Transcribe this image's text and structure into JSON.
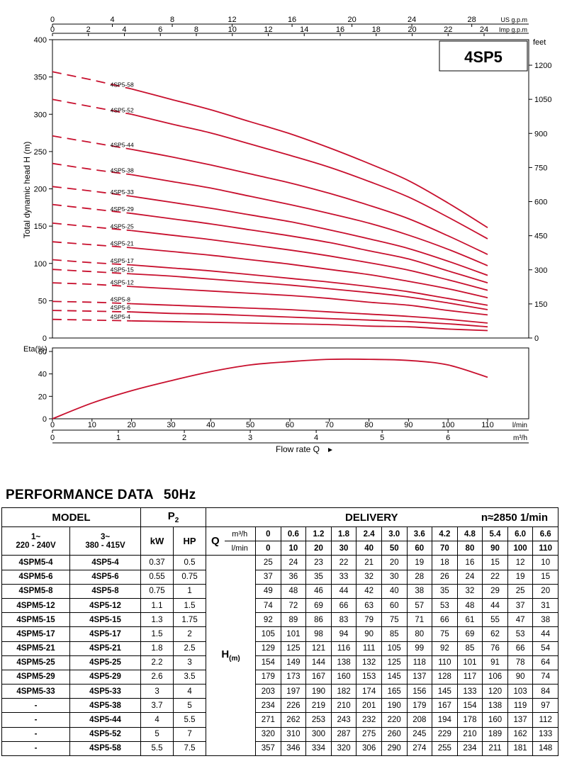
{
  "chart_data": [
    {
      "type": "line",
      "title": "4SP5",
      "ylabel": "Total dynamic head H (m)",
      "ylabel_right": "feet",
      "xlabel": "Flow rate Q",
      "x_unit": "l/min",
      "ylim": [
        0,
        400
      ],
      "xlim": [
        0,
        110
      ],
      "y_ticks": [
        0,
        50,
        100,
        150,
        200,
        250,
        300,
        350,
        400
      ],
      "y_right_ticks": [
        0,
        150,
        300,
        450,
        600,
        750,
        900,
        1050,
        1200
      ],
      "top_axes": [
        {
          "label": "US g.p.m",
          "ticks": [
            0,
            4,
            8,
            12,
            16,
            20,
            24,
            28
          ]
        },
        {
          "label": "Imp g.p.m",
          "ticks": [
            0,
            2,
            4,
            6,
            8,
            10,
            12,
            14,
            16,
            18,
            20,
            22,
            24
          ]
        }
      ],
      "x": [
        0,
        10,
        20,
        30,
        40,
        50,
        60,
        70,
        80,
        90,
        100,
        110
      ],
      "series": [
        {
          "name": "4SP5-4",
          "values": [
            25,
            24,
            23,
            22,
            21,
            20,
            19,
            18,
            16,
            15,
            12,
            10
          ]
        },
        {
          "name": "4SP5-6",
          "values": [
            37,
            36,
            35,
            33,
            32,
            30,
            28,
            26,
            24,
            22,
            19,
            15
          ]
        },
        {
          "name": "4SP5-8",
          "values": [
            49,
            48,
            46,
            44,
            42,
            40,
            38,
            35,
            32,
            29,
            25,
            20
          ]
        },
        {
          "name": "4SP5-12",
          "values": [
            74,
            72,
            69,
            66,
            63,
            60,
            57,
            53,
            48,
            44,
            37,
            31
          ]
        },
        {
          "name": "4SP5-15",
          "values": [
            92,
            89,
            86,
            83,
            79,
            75,
            71,
            66,
            61,
            55,
            47,
            38
          ]
        },
        {
          "name": "4SP5-17",
          "values": [
            105,
            101,
            98,
            94,
            90,
            85,
            80,
            75,
            69,
            62,
            53,
            44
          ]
        },
        {
          "name": "4SP5-21",
          "values": [
            129,
            125,
            121,
            116,
            111,
            105,
            99,
            92,
            85,
            76,
            66,
            54
          ]
        },
        {
          "name": "4SP5-25",
          "values": [
            154,
            149,
            144,
            138,
            132,
            125,
            118,
            110,
            101,
            91,
            78,
            64
          ]
        },
        {
          "name": "4SP5-29",
          "values": [
            179,
            173,
            167,
            160,
            153,
            145,
            137,
            128,
            117,
            106,
            90,
            74
          ]
        },
        {
          "name": "4SP5-33",
          "values": [
            203,
            197,
            190,
            182,
            174,
            165,
            156,
            145,
            133,
            120,
            103,
            84
          ]
        },
        {
          "name": "4SP5-38",
          "values": [
            234,
            226,
            219,
            210,
            201,
            190,
            179,
            167,
            154,
            138,
            119,
            97
          ]
        },
        {
          "name": "4SP5-44",
          "values": [
            271,
            262,
            253,
            243,
            232,
            220,
            208,
            194,
            178,
            160,
            137,
            112
          ]
        },
        {
          "name": "4SP5-52",
          "values": [
            320,
            310,
            300,
            287,
            275,
            260,
            245,
            229,
            210,
            189,
            162,
            133
          ]
        },
        {
          "name": "4SP5-58",
          "values": [
            357,
            346,
            334,
            320,
            306,
            290,
            274,
            255,
            234,
            211,
            181,
            148
          ]
        }
      ],
      "dashed_until_x": 20,
      "line_color": "#c8102e"
    },
    {
      "type": "line",
      "ylabel": "Eta(%)",
      "ylim": [
        0,
        60
      ],
      "y_ticks": [
        0,
        20,
        40,
        60
      ],
      "x_axes": [
        {
          "unit": "l/min",
          "ticks": [
            0,
            10,
            20,
            30,
            40,
            50,
            60,
            70,
            80,
            90,
            100,
            110
          ]
        },
        {
          "unit": "m³/h",
          "ticks": [
            0,
            1,
            2,
            3,
            4,
            5,
            6
          ]
        }
      ],
      "x": [
        0,
        10,
        20,
        30,
        40,
        50,
        60,
        70,
        80,
        90,
        100,
        110
      ],
      "series": [
        {
          "values": [
            0,
            14,
            25,
            34,
            42,
            48,
            51,
            53,
            53,
            52,
            48,
            37
          ]
        }
      ],
      "line_color": "#c8102e"
    }
  ],
  "performance": {
    "title": "PERFORMANCE  DATA",
    "hz": "50Hz",
    "header": {
      "model": "MODEL",
      "p2": "P",
      "p2_sub": "2",
      "delivery": "DELIVERY",
      "speed": "n≈2850 1/min",
      "single_phase": "1~",
      "single_voltage": "220 - 240V",
      "three_phase": "3~",
      "three_voltage": "380 - 415V",
      "kw": "kW",
      "hp": "HP",
      "q": "Q",
      "unit_m3h": "m³/h",
      "unit_lmin": "l/min",
      "h_label": "H",
      "h_unit": "(m)"
    },
    "q_m3h": [
      "0",
      "0.6",
      "1.2",
      "1.8",
      "2.4",
      "3.0",
      "3.6",
      "4.2",
      "4.8",
      "5.4",
      "6.0",
      "6.6"
    ],
    "q_lmin": [
      "0",
      "10",
      "20",
      "30",
      "40",
      "50",
      "60",
      "70",
      "80",
      "90",
      "100",
      "110"
    ],
    "rows": [
      {
        "m1": "4SPM5-4",
        "m3": "4SP5-4",
        "kw": "0.37",
        "hp": "0.5",
        "h": [
          "25",
          "24",
          "23",
          "22",
          "21",
          "20",
          "19",
          "18",
          "16",
          "15",
          "12",
          "10"
        ]
      },
      {
        "m1": "4SPM5-6",
        "m3": "4SP5-6",
        "kw": "0.55",
        "hp": "0.75",
        "h": [
          "37",
          "36",
          "35",
          "33",
          "32",
          "30",
          "28",
          "26",
          "24",
          "22",
          "19",
          "15"
        ]
      },
      {
        "m1": "4SPM5-8",
        "m3": "4SP5-8",
        "kw": "0.75",
        "hp": "1",
        "h": [
          "49",
          "48",
          "46",
          "44",
          "42",
          "40",
          "38",
          "35",
          "32",
          "29",
          "25",
          "20"
        ]
      },
      {
        "m1": "4SPM5-12",
        "m3": "4SP5-12",
        "kw": "1.1",
        "hp": "1.5",
        "h": [
          "74",
          "72",
          "69",
          "66",
          "63",
          "60",
          "57",
          "53",
          "48",
          "44",
          "37",
          "31"
        ]
      },
      {
        "m1": "4SPM5-15",
        "m3": "4SP5-15",
        "kw": "1.3",
        "hp": "1.75",
        "h": [
          "92",
          "89",
          "86",
          "83",
          "79",
          "75",
          "71",
          "66",
          "61",
          "55",
          "47",
          "38"
        ]
      },
      {
        "m1": "4SPM5-17",
        "m3": "4SP5-17",
        "kw": "1.5",
        "hp": "2",
        "h": [
          "105",
          "101",
          "98",
          "94",
          "90",
          "85",
          "80",
          "75",
          "69",
          "62",
          "53",
          "44"
        ]
      },
      {
        "m1": "4SPM5-21",
        "m3": "4SP5-21",
        "kw": "1.8",
        "hp": "2.5",
        "h": [
          "129",
          "125",
          "121",
          "116",
          "111",
          "105",
          "99",
          "92",
          "85",
          "76",
          "66",
          "54"
        ]
      },
      {
        "m1": "4SPM5-25",
        "m3": "4SP5-25",
        "kw": "2.2",
        "hp": "3",
        "h": [
          "154",
          "149",
          "144",
          "138",
          "132",
          "125",
          "118",
          "110",
          "101",
          "91",
          "78",
          "64"
        ]
      },
      {
        "m1": "4SPM5-29",
        "m3": "4SP5-29",
        "kw": "2.6",
        "hp": "3.5",
        "h": [
          "179",
          "173",
          "167",
          "160",
          "153",
          "145",
          "137",
          "128",
          "117",
          "106",
          "90",
          "74"
        ]
      },
      {
        "m1": "4SPM5-33",
        "m3": "4SP5-33",
        "kw": "3",
        "hp": "4",
        "h": [
          "203",
          "197",
          "190",
          "182",
          "174",
          "165",
          "156",
          "145",
          "133",
          "120",
          "103",
          "84"
        ]
      },
      {
        "m1": "-",
        "m3": "4SP5-38",
        "kw": "3.7",
        "hp": "5",
        "h": [
          "234",
          "226",
          "219",
          "210",
          "201",
          "190",
          "179",
          "167",
          "154",
          "138",
          "119",
          "97"
        ]
      },
      {
        "m1": "-",
        "m3": "4SP5-44",
        "kw": "4",
        "hp": "5.5",
        "h": [
          "271",
          "262",
          "253",
          "243",
          "232",
          "220",
          "208",
          "194",
          "178",
          "160",
          "137",
          "112"
        ]
      },
      {
        "m1": "-",
        "m3": "4SP5-52",
        "kw": "5",
        "hp": "7",
        "h": [
          "320",
          "310",
          "300",
          "287",
          "275",
          "260",
          "245",
          "229",
          "210",
          "189",
          "162",
          "133"
        ]
      },
      {
        "m1": "-",
        "m3": "4SP5-58",
        "kw": "5.5",
        "hp": "7.5",
        "h": [
          "357",
          "346",
          "334",
          "320",
          "306",
          "290",
          "274",
          "255",
          "234",
          "211",
          "181",
          "148"
        ]
      }
    ]
  }
}
